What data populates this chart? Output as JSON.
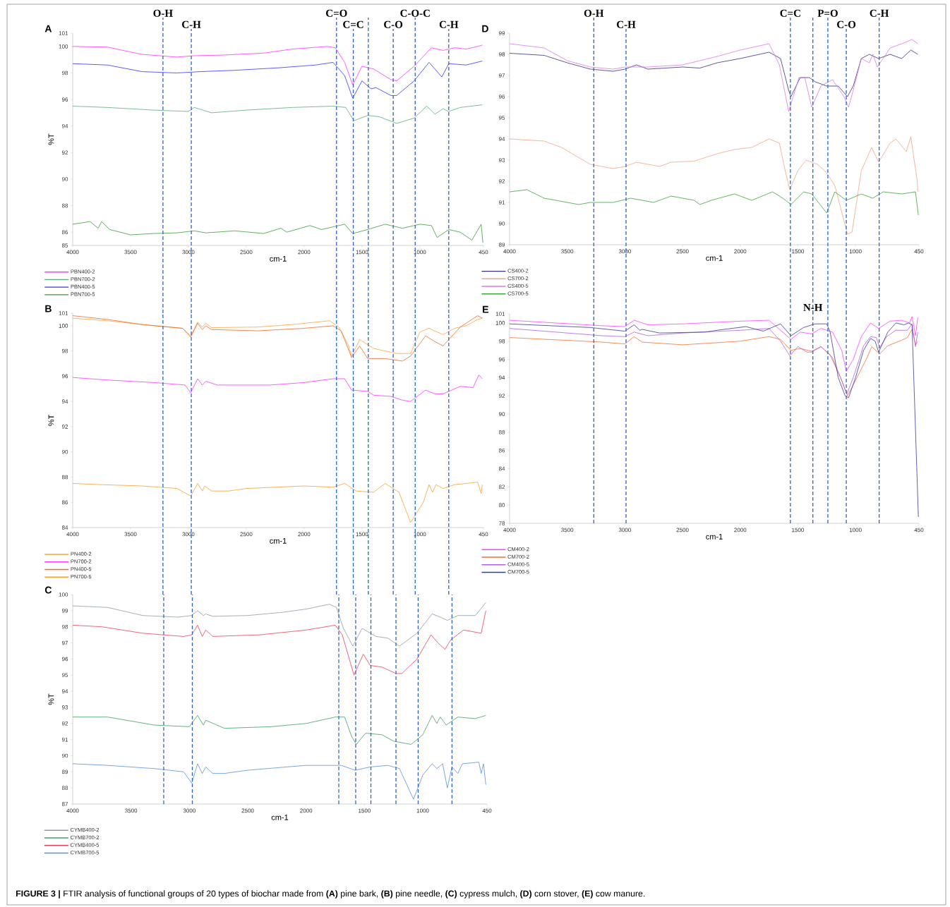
{
  "chart_data": [
    {
      "type": "line",
      "title": "A",
      "xlabel": "cm-1",
      "ylabel": "%T",
      "xlim": [
        4000,
        450
      ],
      "ylim": [
        85,
        101
      ],
      "xticks": [
        4000,
        3500,
        3000,
        2500,
        2000,
        1500,
        1000,
        450
      ],
      "yticks": [
        85,
        86,
        88,
        90,
        92,
        94,
        96,
        98,
        100,
        101
      ],
      "legend": "bottom left",
      "annotations": [
        "**FIGURE 3 |** FTIR analysis of functional groups of 20 types of biochar made from **(A)** pine bark, **(B)** pine needle, **(C)** cypress mulch, **(D)** corn stover, **(E)** cow manure."
      ],
      "ref_lines": [
        {
          "axis": "x",
          "value": 3220,
          "label": "O-H",
          "color": "#2b64d2",
          "line_style": "dashed"
        },
        {
          "axis": "x",
          "value": 2975,
          "label": "C-H",
          "color": "#2b64d2",
          "line_style": "dashed"
        },
        {
          "axis": "x",
          "value": 1720,
          "label": "C=O",
          "color": "#2b64d2",
          "line_style": "dashed"
        },
        {
          "axis": "x",
          "value": 1575,
          "label": "C=C",
          "color": "#2b64d2",
          "line_style": "dashed"
        },
        {
          "axis": "x",
          "value": 1445,
          "color": "#2b64d2",
          "line_style": "dashed"
        },
        {
          "axis": "x",
          "value": 1230,
          "label": "C-O",
          "color": "#2b64d2",
          "line_style": "dashed"
        },
        {
          "axis": "x",
          "value": 1040,
          "label": "C-O-C",
          "color": "#2b64d2",
          "line_style": "dashed"
        },
        {
          "axis": "x",
          "value": 750,
          "label": "C-H",
          "color": "#2b64d2",
          "line_style": "dashed"
        }
      ],
      "series": [
        {
          "name": "PBN400-2",
          "color": "#ff33ff",
          "x": [
            4000,
            3700,
            3400,
            3100,
            2950,
            2700,
            2350,
            2100,
            1800,
            1730,
            1650,
            1580,
            1500,
            1400,
            1250,
            1200,
            1050,
            900,
            800,
            700,
            600,
            500,
            460
          ],
          "values": [
            100,
            99.95,
            99.4,
            99.2,
            99.3,
            99.35,
            99.5,
            99.8,
            100,
            99.9,
            98.8,
            97.1,
            98.5,
            98.3,
            97.5,
            97.4,
            98.5,
            99.9,
            99.7,
            99.9,
            99.8,
            100,
            100.1
          ]
        },
        {
          "name": "PBN700-2",
          "color": "#5aaa7a",
          "x": [
            4000,
            3700,
            3300,
            3000,
            2950,
            2800,
            2500,
            2100,
            1750,
            1640,
            1570,
            1450,
            1350,
            1200,
            1050,
            940,
            870,
            800,
            750,
            650,
            460
          ],
          "values": [
            95.5,
            95.4,
            95.2,
            95.1,
            95.4,
            95,
            95.2,
            95.4,
            95.5,
            95.4,
            94.4,
            94.8,
            94.7,
            94.2,
            94.6,
            95.5,
            94.9,
            95.3,
            95.1,
            95.4,
            95.6
          ]
        },
        {
          "name": "PBN400-5",
          "color": "#3333ff",
          "x": [
            4000,
            3700,
            3400,
            3100,
            2900,
            2600,
            2200,
            1900,
            1750,
            1650,
            1580,
            1500,
            1420,
            1380,
            1250,
            1200,
            1050,
            920,
            850,
            810,
            750,
            600,
            460
          ],
          "values": [
            98.7,
            98.6,
            98.1,
            98,
            98.1,
            98.2,
            98.4,
            98.6,
            98.8,
            97.8,
            96.1,
            97.4,
            96.8,
            96.9,
            96.3,
            96.3,
            97.4,
            98.8,
            98.1,
            97.7,
            98.7,
            98.6,
            98.9
          ]
        },
        {
          "name": "PBN700-5",
          "color": "#3c9a3c",
          "x": [
            4000,
            3850,
            3780,
            3750,
            3680,
            3500,
            3300,
            3100,
            2950,
            2850,
            2600,
            2350,
            2200,
            2150,
            1950,
            1850,
            1650,
            1580,
            1450,
            1300,
            1150,
            1000,
            900,
            850,
            750,
            650,
            550,
            470,
            455
          ],
          "values": [
            86.6,
            86.8,
            86.3,
            86.8,
            86.2,
            85.8,
            85.9,
            85.95,
            86.1,
            85.95,
            86.1,
            85.9,
            86.3,
            86,
            86.5,
            86.2,
            86.6,
            85.9,
            86.2,
            86.6,
            86.3,
            86.6,
            86.5,
            85.6,
            86.2,
            86,
            85.4,
            86.6,
            85.2
          ]
        }
      ]
    },
    {
      "type": "line",
      "title": "B",
      "xlabel": "cm-1",
      "ylabel": "%T",
      "xlim": [
        4000,
        450
      ],
      "ylim": [
        84,
        101
      ],
      "xticks": [
        4000,
        3500,
        3000,
        2500,
        2000,
        1500,
        1000,
        450
      ],
      "yticks": [
        84,
        86,
        88,
        90,
        92,
        94,
        96,
        98,
        100,
        101
      ],
      "legend": "bottom left",
      "ref_lines": [
        {
          "axis": "x",
          "value": 3220,
          "color": "#2b64d2",
          "line_style": "dashed"
        },
        {
          "axis": "x",
          "value": 2975,
          "color": "#2b64d2",
          "line_style": "dashed"
        },
        {
          "axis": "x",
          "value": 1720,
          "color": "#2b64d2",
          "line_style": "dashed"
        },
        {
          "axis": "x",
          "value": 1575,
          "color": "#2b64d2",
          "line_style": "dashed"
        },
        {
          "axis": "x",
          "value": 1445,
          "color": "#2b64d2",
          "line_style": "dashed"
        },
        {
          "axis": "x",
          "value": 1230,
          "color": "#2b64d2",
          "line_style": "dashed"
        },
        {
          "axis": "x",
          "value": 1040,
          "color": "#2b64d2",
          "line_style": "dashed"
        },
        {
          "axis": "x",
          "value": 750,
          "color": "#2b64d2",
          "line_style": "dashed"
        }
      ],
      "series": [
        {
          "name": "PN400-2",
          "color": "#f7a540",
          "x": [
            4000,
            3700,
            3300,
            3050,
            2980,
            2920,
            2880,
            2850,
            2800,
            2400,
            2100,
            1780,
            1700,
            1620,
            1590,
            1520,
            1400,
            1300,
            1200,
            1080,
            1000,
            920,
            800,
            700,
            600,
            500,
            460
          ],
          "values": [
            100.6,
            100.4,
            100,
            99.8,
            99.2,
            100.3,
            99.9,
            100.2,
            99.85,
            99.9,
            100.1,
            100.4,
            99.9,
            98.5,
            97.6,
            98.9,
            98.2,
            98,
            97.8,
            97.8,
            99.5,
            99.8,
            99.3,
            99.8,
            100,
            100.5,
            100.6
          ]
        },
        {
          "name": "PN700-2",
          "color": "#ff33ff",
          "x": [
            4000,
            3700,
            3300,
            3030,
            2980,
            2920,
            2880,
            2850,
            2750,
            2300,
            2000,
            1750,
            1650,
            1590,
            1450,
            1400,
            1250,
            1150,
            1080,
            950,
            870,
            800,
            650,
            540,
            490,
            460
          ],
          "values": [
            95.9,
            95.7,
            95.5,
            95.3,
            94.7,
            95.8,
            95.3,
            95.6,
            95.3,
            95.3,
            95.5,
            95.8,
            95.8,
            94.9,
            94.8,
            94.5,
            94.4,
            94.1,
            94,
            94.9,
            94.6,
            94.6,
            95.2,
            95.1,
            96.1,
            95.8
          ]
        },
        {
          "name": "PN400-5",
          "color": "#ec6a2a",
          "x": [
            4000,
            3700,
            3400,
            3050,
            2980,
            2920,
            2880,
            2850,
            2800,
            2400,
            2000,
            1750,
            1680,
            1590,
            1520,
            1450,
            1300,
            1150,
            1080,
            950,
            880,
            800,
            650,
            500,
            460
          ],
          "values": [
            100.8,
            100.5,
            100.1,
            99.8,
            99.1,
            100.2,
            99.7,
            100,
            99.7,
            99.6,
            99.8,
            100,
            99.6,
            97.5,
            98.4,
            97.4,
            97.4,
            97.2,
            97.6,
            99.2,
            98.8,
            98.4,
            99.9,
            100.8,
            100.6
          ]
        },
        {
          "name": "PN700-5",
          "color": "#f7a030",
          "x": [
            4000,
            3750,
            3400,
            3100,
            2980,
            2920,
            2880,
            2860,
            2800,
            2650,
            2500,
            2000,
            1750,
            1650,
            1550,
            1400,
            1300,
            1180,
            1080,
            970,
            920,
            890,
            860,
            800,
            700,
            500,
            470,
            460
          ],
          "values": [
            87.5,
            87.4,
            87.3,
            87.1,
            86.5,
            87.5,
            86.9,
            87.3,
            86.9,
            86.9,
            87.1,
            87.3,
            87.2,
            87.5,
            86.9,
            86.8,
            87.5,
            86.8,
            84.4,
            86,
            87.4,
            86.8,
            87.4,
            87.1,
            87.4,
            87.6,
            86.7,
            87.4
          ]
        }
      ]
    },
    {
      "type": "line",
      "title": "C",
      "xlabel": "cm-1",
      "ylabel": "%T",
      "xlim": [
        4000,
        450
      ],
      "ylim": [
        87,
        100
      ],
      "xticks": [
        4000,
        3500,
        3000,
        2500,
        2000,
        1500,
        1000,
        450
      ],
      "yticks": [
        87,
        88,
        89,
        90,
        91,
        92,
        93,
        94,
        95,
        96,
        97,
        98,
        99,
        100
      ],
      "legend": "bottom left",
      "ref_lines": [
        {
          "axis": "x",
          "value": 3220,
          "color": "#2b64d2",
          "line_style": "dashed"
        },
        {
          "axis": "x",
          "value": 2975,
          "color": "#2b64d2",
          "line_style": "dashed"
        },
        {
          "axis": "x",
          "value": 1720,
          "color": "#2b64d2",
          "line_style": "dashed"
        },
        {
          "axis": "x",
          "value": 1575,
          "color": "#2b64d2",
          "line_style": "dashed"
        },
        {
          "axis": "x",
          "value": 1445,
          "color": "#2b64d2",
          "line_style": "dashed"
        },
        {
          "axis": "x",
          "value": 1230,
          "color": "#2b64d2",
          "line_style": "dashed"
        },
        {
          "axis": "x",
          "value": 1040,
          "color": "#2b64d2",
          "line_style": "dashed"
        },
        {
          "axis": "x",
          "value": 750,
          "color": "#2b64d2",
          "line_style": "dashed"
        }
      ],
      "series": [
        {
          "name": "CYMB400-2",
          "color": "#8c9aa8",
          "x": [
            4000,
            3700,
            3400,
            3100,
            2980,
            2930,
            2880,
            2860,
            2800,
            2500,
            2200,
            2000,
            1800,
            1740,
            1680,
            1600,
            1520,
            1400,
            1300,
            1200,
            1050,
            920,
            850,
            790,
            700,
            550,
            460
          ],
          "values": [
            99.3,
            99.2,
            98.7,
            98.6,
            98.7,
            99,
            98.7,
            98.8,
            98.65,
            98.7,
            98.9,
            99.1,
            99.4,
            99.2,
            97.9,
            96.8,
            97.9,
            97.4,
            97.3,
            96.8,
            97.6,
            98.8,
            98.6,
            98.4,
            98.7,
            98.7,
            99.5
          ]
        },
        {
          "name": "CYMB700-2",
          "color": "#3f9f5f",
          "x": [
            4000,
            3700,
            3300,
            3000,
            2930,
            2880,
            2860,
            2700,
            2300,
            2000,
            1750,
            1670,
            1610,
            1570,
            1490,
            1350,
            1250,
            1100,
            1000,
            920,
            880,
            850,
            800,
            700,
            550,
            460
          ],
          "values": [
            92.4,
            92.4,
            91.9,
            91.8,
            92.5,
            91.9,
            92.2,
            91.7,
            91.8,
            92,
            92.4,
            92.4,
            91.2,
            90.7,
            91.4,
            91.3,
            90.9,
            90.7,
            91.3,
            92.5,
            92,
            92.4,
            91.9,
            92.4,
            92.3,
            92.5
          ]
        },
        {
          "name": "CYMB400-5",
          "color": "#e8405a",
          "x": [
            4000,
            3750,
            3400,
            3050,
            2980,
            2930,
            2890,
            2860,
            2800,
            2400,
            2000,
            1750,
            1690,
            1590,
            1510,
            1450,
            1350,
            1230,
            1180,
            1050,
            930,
            870,
            810,
            760,
            650,
            500,
            460
          ],
          "values": [
            98.1,
            98,
            97.6,
            97.4,
            97.5,
            98.1,
            97.4,
            97.8,
            97.4,
            97.5,
            97.8,
            98.1,
            97.5,
            95,
            96.3,
            95.6,
            95.5,
            95.1,
            95.1,
            96,
            97.5,
            97,
            96.6,
            97.2,
            97.8,
            97.6,
            99
          ]
        },
        {
          "name": "CYMB700-5",
          "color": "#5b8fdc",
          "x": [
            4000,
            3700,
            3300,
            3050,
            2980,
            2930,
            2890,
            2860,
            2800,
            2700,
            2500,
            2000,
            1700,
            1580,
            1450,
            1300,
            1200,
            1080,
            1000,
            920,
            880,
            830,
            790,
            750,
            700,
            660,
            520,
            500,
            480,
            460
          ],
          "values": [
            89.5,
            89.4,
            89.2,
            89,
            88.3,
            89.5,
            88.9,
            89.3,
            88.9,
            88.9,
            89.1,
            89.4,
            89.4,
            89.1,
            89.3,
            89.4,
            89.2,
            87.3,
            88.8,
            89.5,
            89.2,
            89.5,
            88,
            89.3,
            88.9,
            89.5,
            89.6,
            88.9,
            89.5,
            88.2
          ]
        }
      ]
    },
    {
      "type": "line",
      "title": "D",
      "xlabel": "cm-1",
      "xlim": [
        4000,
        450
      ],
      "ylim": [
        89,
        99
      ],
      "xticks": [
        4000,
        3500,
        3000,
        2500,
        2000,
        1500,
        1000,
        450
      ],
      "yticks": [
        89,
        90,
        91,
        92,
        93,
        94,
        95,
        96,
        97,
        98,
        99
      ],
      "legend": "bottom left",
      "ref_lines": [
        {
          "axis": "x",
          "value": 3270,
          "label": "O-H",
          "color": "#2b64d2",
          "line_style": "dashed"
        },
        {
          "axis": "x",
          "value": 2990,
          "label": "C-H",
          "color": "#2b64d2",
          "line_style": "dashed"
        },
        {
          "axis": "x",
          "value": 1565,
          "label": "C=C",
          "color": "#2b64d2",
          "line_style": "dashed"
        },
        {
          "axis": "x",
          "value": 1370,
          "color": "#2b64d2",
          "line_style": "dashed"
        },
        {
          "axis": "x",
          "value": 1240,
          "label": "P=O",
          "color": "#2b64d2",
          "line_style": "dashed"
        },
        {
          "axis": "x",
          "value": 1080,
          "label": "C-O",
          "color": "#2b64d2",
          "line_style": "dashed"
        },
        {
          "axis": "x",
          "value": 795,
          "label": "C-H",
          "color": "#2b64d2",
          "line_style": "dashed"
        }
      ],
      "series": [
        {
          "name": "CS400-2",
          "color": "#32327e",
          "x": [
            4000,
            3700,
            3500,
            3300,
            3100,
            3000,
            2900,
            2800,
            2500,
            2350,
            2200,
            2000,
            1750,
            1650,
            1580,
            1560,
            1480,
            1400,
            1350,
            1250,
            1150,
            1070,
            1020,
            950,
            880,
            800,
            700,
            600,
            520,
            460
          ],
          "values": [
            98.05,
            97.95,
            97.6,
            97.3,
            97.2,
            97.3,
            97.5,
            97.3,
            97.4,
            97.35,
            97.6,
            97.8,
            98.1,
            97.8,
            96.3,
            96,
            96.9,
            96.9,
            96.7,
            96.5,
            96.5,
            96,
            96.5,
            97.8,
            98,
            97.8,
            98,
            97.8,
            98.2,
            98
          ]
        },
        {
          "name": "CS700-2",
          "color": "#f0a585",
          "x": [
            4000,
            3700,
            3550,
            3300,
            3100,
            3000,
            2900,
            2700,
            2600,
            2400,
            2200,
            2050,
            1900,
            1750,
            1660,
            1610,
            1570,
            1500,
            1430,
            1330,
            1250,
            1180,
            1070,
            1030,
            950,
            860,
            800,
            700,
            650,
            560,
            520,
            465,
            460
          ],
          "values": [
            94,
            93.9,
            93.6,
            92.8,
            92.6,
            92.7,
            92.9,
            92.7,
            92.9,
            92.95,
            93.3,
            93.5,
            93.6,
            94,
            93.8,
            92.5,
            91.6,
            92.5,
            93,
            92.8,
            92.4,
            91.8,
            89.5,
            89.6,
            92.5,
            93.6,
            92.9,
            93.8,
            94,
            93.4,
            94.1,
            92,
            91.5
          ]
        },
        {
          "name": "CS400-5",
          "color": "#da78e0",
          "x": [
            4000,
            3700,
            3500,
            3300,
            3100,
            3000,
            2800,
            2500,
            2200,
            2000,
            1750,
            1660,
            1580,
            1490,
            1440,
            1380,
            1300,
            1200,
            1100,
            1060,
            1010,
            950,
            880,
            850,
            810,
            700,
            600,
            510,
            460
          ],
          "values": [
            98.5,
            98.3,
            97.7,
            97.4,
            97.3,
            97.4,
            97.4,
            97.5,
            97.9,
            98.2,
            98.5,
            97.5,
            95.3,
            96.9,
            96.9,
            95.5,
            96.5,
            96.8,
            96,
            95.5,
            96.5,
            97.8,
            97.6,
            98,
            97.4,
            98.3,
            98.5,
            98.7,
            98.5
          ]
        },
        {
          "name": "CS700-5",
          "color": "#3aa53a",
          "x": [
            4000,
            3850,
            3700,
            3600,
            3400,
            3300,
            3100,
            2950,
            2750,
            2600,
            2400,
            2350,
            2250,
            2050,
            1900,
            1720,
            1630,
            1560,
            1450,
            1380,
            1250,
            1180,
            1080,
            950,
            850,
            760,
            600,
            480,
            455
          ],
          "values": [
            91.5,
            91.6,
            91.2,
            91.1,
            90.9,
            91,
            91,
            91.2,
            91,
            91.3,
            91.1,
            90.9,
            91.1,
            91.4,
            91.1,
            91.5,
            91.2,
            90.9,
            91.5,
            91.4,
            90.5,
            91.5,
            91.1,
            91.4,
            91.2,
            91.5,
            91.4,
            91.5,
            90.4
          ]
        }
      ]
    },
    {
      "type": "line",
      "title": "E",
      "xlabel": "cm-1",
      "xlim": [
        4000,
        450
      ],
      "ylim": [
        78,
        101
      ],
      "xticks": [
        4000,
        3500,
        3000,
        2500,
        2000,
        1500,
        1000,
        450
      ],
      "yticks": [
        78,
        80,
        82,
        84,
        86,
        88,
        90,
        92,
        94,
        96,
        98,
        100,
        101
      ],
      "legend": "bottom left",
      "ref_lines": [
        {
          "axis": "x",
          "value": 3270,
          "color": "#2b64d2",
          "line_style": "dashed"
        },
        {
          "axis": "x",
          "value": 2990,
          "color": "#2b64d2",
          "line_style": "dashed"
        },
        {
          "axis": "x",
          "value": 1565,
          "color": "#2b64d2",
          "line_style": "dashed"
        },
        {
          "axis": "x",
          "value": 1370,
          "label": "N-H",
          "color": "#2b64d2",
          "line_style": "dashed"
        },
        {
          "axis": "x",
          "value": 1240,
          "color": "#2b64d2",
          "line_style": "dashed"
        },
        {
          "axis": "x",
          "value": 1080,
          "color": "#2b64d2",
          "line_style": "dashed"
        },
        {
          "axis": "x",
          "value": 795,
          "color": "#2b64d2",
          "line_style": "dashed"
        }
      ],
      "series": [
        {
          "name": "CM400-2",
          "color": "#ff40ff",
          "x": [
            4000,
            3200,
            3000,
            2920,
            2800,
            2500,
            2000,
            1750,
            1650,
            1560,
            1480,
            1380,
            1300,
            1200,
            1120,
            1080,
            1020,
            950,
            870,
            800,
            700,
            600,
            530,
            510,
            480,
            460
          ],
          "values": [
            100.3,
            99.7,
            99.6,
            100.3,
            99.8,
            99.9,
            100.2,
            100.3,
            99.2,
            98.2,
            99,
            98.8,
            99.4,
            99,
            97,
            94.7,
            96,
            98.5,
            100,
            99.4,
            100.2,
            100.3,
            100,
            100.7,
            98.6,
            100.6
          ]
        },
        {
          "name": "CM700-2",
          "color": "#f57035",
          "x": [
            4000,
            3200,
            3000,
            2920,
            2850,
            2500,
            2000,
            1750,
            1650,
            1560,
            1480,
            1380,
            1300,
            1200,
            1130,
            1070,
            1020,
            900,
            860,
            790,
            720,
            600,
            550,
            510,
            480,
            460
          ],
          "values": [
            98.4,
            97.9,
            97.7,
            98.5,
            97.9,
            97.6,
            98,
            98.5,
            98.2,
            97,
            97.2,
            96.9,
            97.4,
            96.2,
            94,
            92,
            93.2,
            96.2,
            97.4,
            96.6,
            97.5,
            98.1,
            98.4,
            99.3,
            97.6,
            98
          ]
        },
        {
          "name": "CM400-5",
          "color": "#b060e0",
          "x": [
            4000,
            3200,
            3000,
            2920,
            2800,
            2500,
            2000,
            1750,
            1650,
            1570,
            1500,
            1420,
            1380,
            1300,
            1220,
            1130,
            1075,
            1020,
            930,
            870,
            820,
            790,
            730,
            650,
            550,
            510,
            480,
            460
          ],
          "values": [
            99.4,
            98.6,
            98.5,
            99,
            98.6,
            98.9,
            99.2,
            99.4,
            98,
            96.4,
            97.4,
            96.8,
            96.8,
            97.4,
            96.5,
            94,
            92.2,
            94,
            97.5,
            98.5,
            98.4,
            97.3,
            98.5,
            99.2,
            99.2,
            99.9,
            97.4,
            99
          ]
        },
        {
          "name": "CM700-5",
          "color": "#3a3a9a",
          "x": [
            4000,
            3300,
            3000,
            2920,
            2870,
            2850,
            2700,
            2300,
            2200,
            1950,
            1800,
            1650,
            1560,
            1450,
            1350,
            1250,
            1220,
            1150,
            1090,
            1060,
            1000,
            930,
            870,
            830,
            800,
            720,
            650,
            580,
            540,
            510,
            455
          ],
          "values": [
            99.9,
            99.5,
            99.1,
            99.8,
            99.2,
            99.3,
            98.9,
            99,
            99.2,
            99.6,
            99.1,
            99.9,
            98.6,
            99.5,
            99.9,
            99.9,
            99,
            94,
            92,
            91.8,
            94,
            97,
            98.3,
            98,
            96.8,
            99,
            100,
            99.8,
            100,
            99.8,
            78.7
          ]
        }
      ]
    }
  ]
}
